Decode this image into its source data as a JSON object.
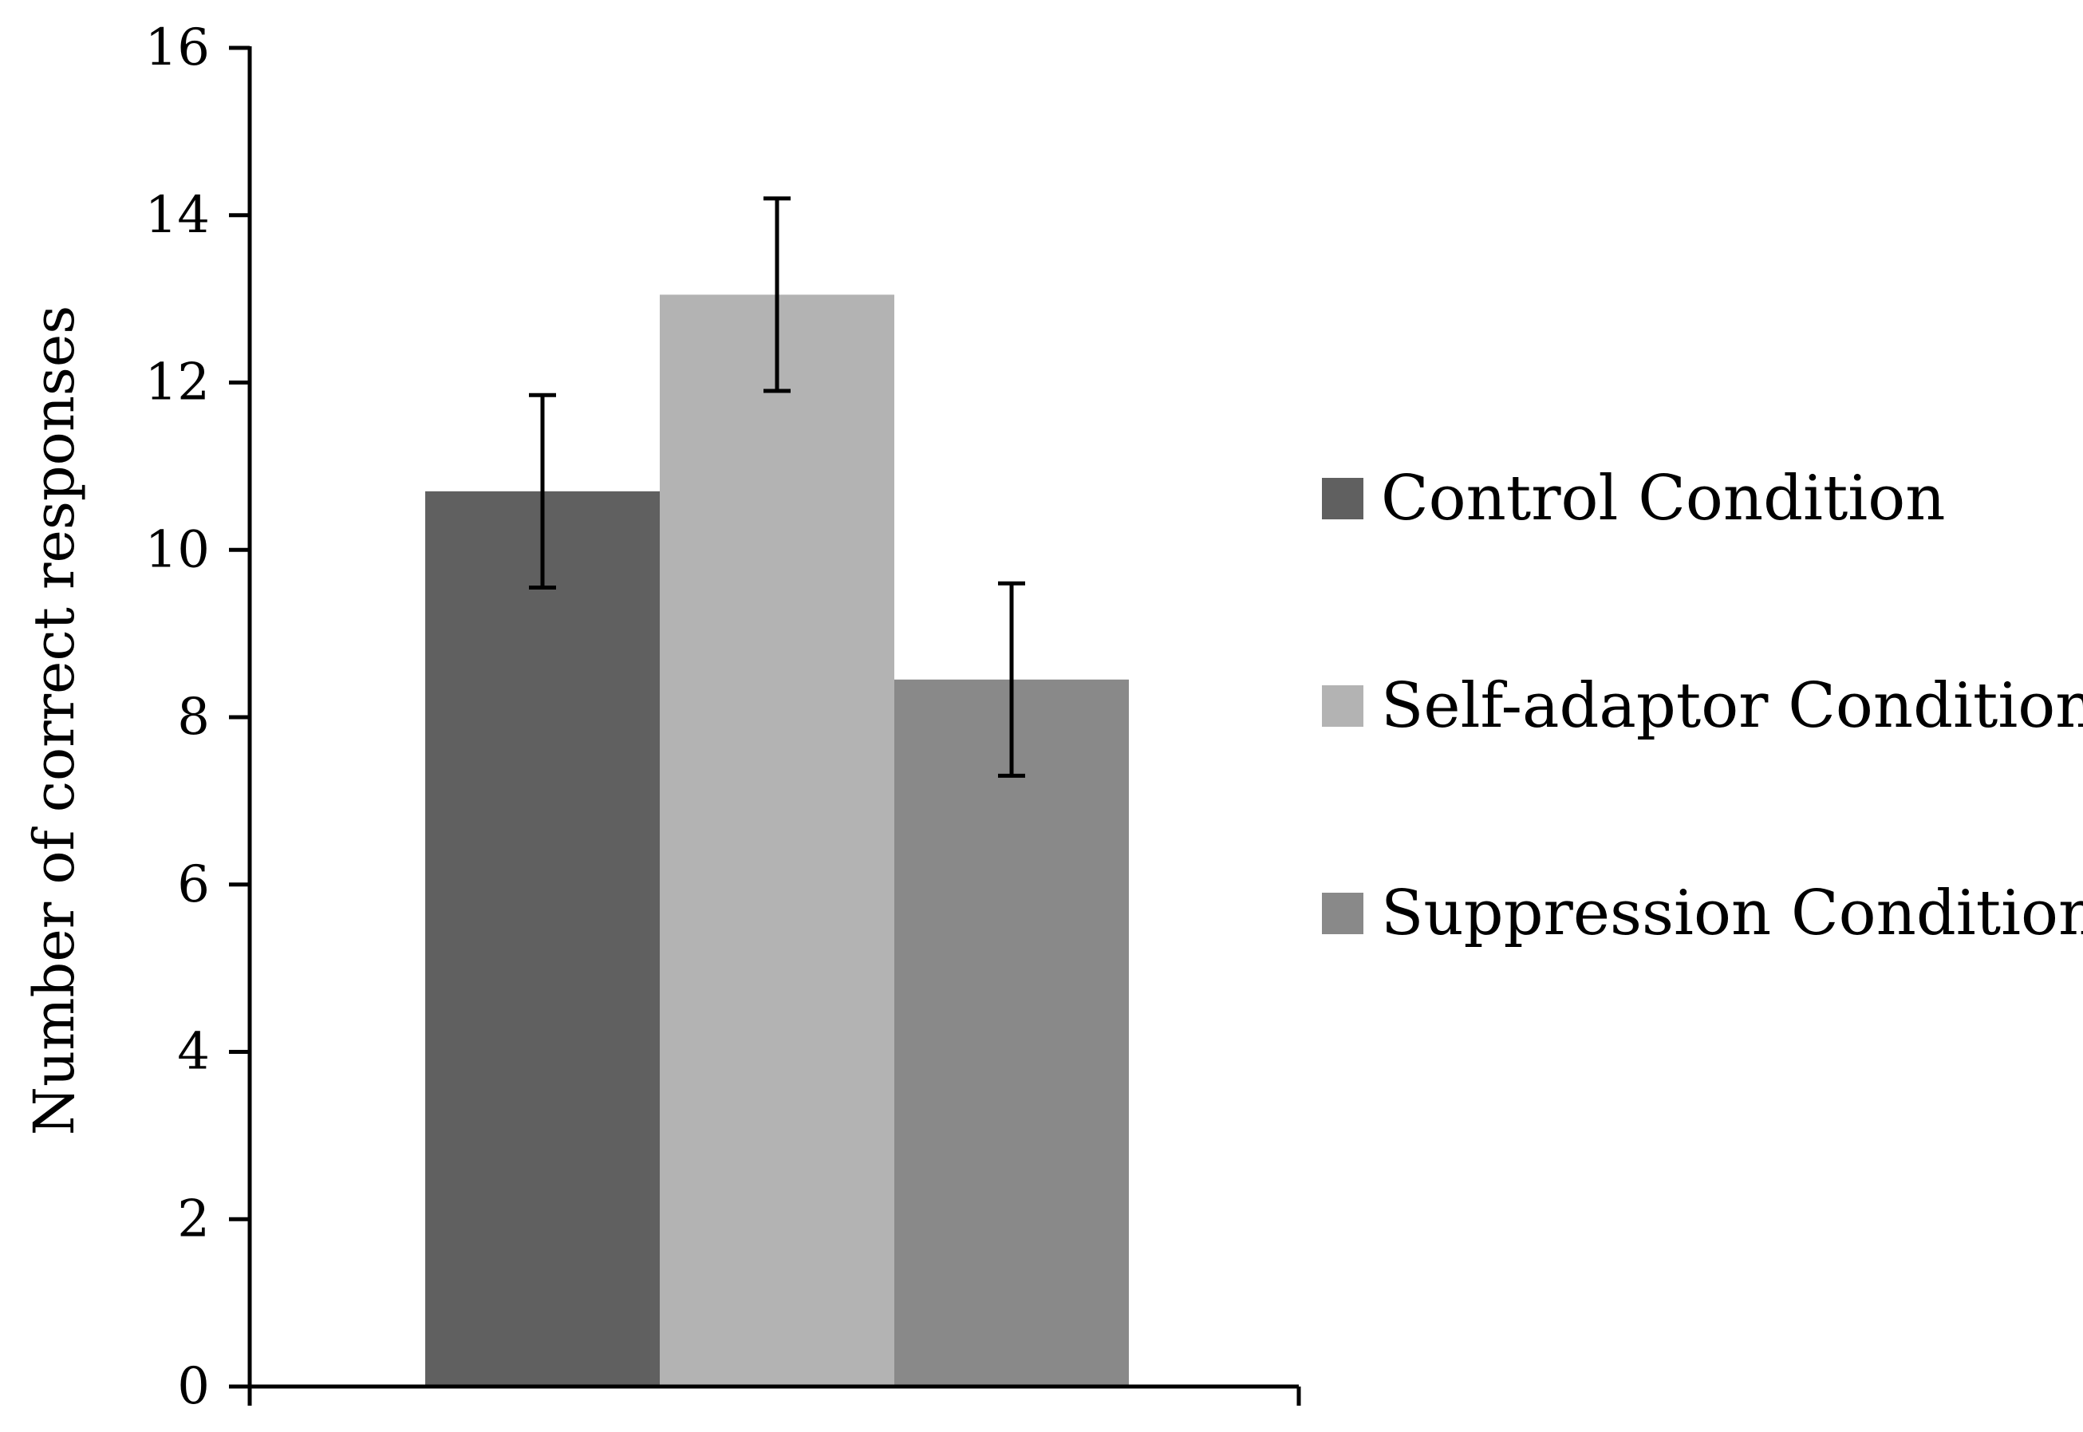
{
  "chart_data": {
    "type": "bar",
    "categories": [
      ""
    ],
    "series": [
      {
        "name": "Control Condition",
        "values": [
          10.7
        ],
        "error": [
          1.15
        ],
        "color": "#606060"
      },
      {
        "name": "Self-adaptor Condition",
        "values": [
          13.05
        ],
        "error": [
          1.15
        ],
        "color": "#b3b3b3"
      },
      {
        "name": "Suppression Condition",
        "values": [
          8.45
        ],
        "error": [
          1.15
        ],
        "color": "#898989"
      }
    ],
    "title": "",
    "xlabel": "",
    "ylabel": "Number of correct responses",
    "ylim": [
      0,
      16
    ],
    "yticks": [
      "0",
      "2",
      "4",
      "6",
      "8",
      "10",
      "12",
      "14",
      "16"
    ],
    "grid": false,
    "legend": "right"
  }
}
